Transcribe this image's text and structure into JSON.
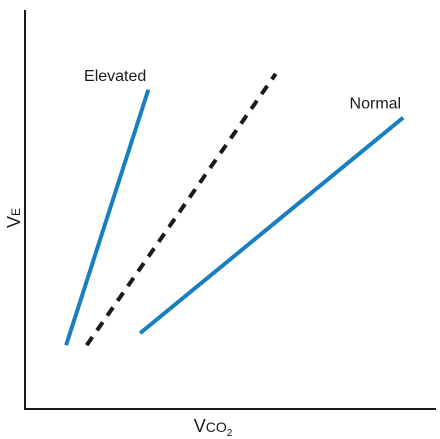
{
  "chart_data": {
    "type": "line",
    "title": "",
    "xlabel": {
      "main": "V",
      "sub": "CO",
      "subscript": "2"
    },
    "ylabel": {
      "main": "V",
      "sub": "E"
    },
    "xlim": [
      0,
      100
    ],
    "ylim": [
      0,
      100
    ],
    "grid": false,
    "legend": "none",
    "series": [
      {
        "name": "Elevated",
        "style": "solid",
        "color": "#1a7fc1",
        "x": [
          10,
          30
        ],
        "y": [
          16,
          80
        ]
      },
      {
        "name": "",
        "style": "dashed",
        "color": "#1a1a1a",
        "x": [
          15,
          61
        ],
        "y": [
          16,
          84
        ]
      },
      {
        "name": "Normal",
        "style": "solid",
        "color": "#1a7fc1",
        "x": [
          28,
          92
        ],
        "y": [
          19,
          73
        ]
      }
    ]
  },
  "colors": {
    "axis": "#1a1a1a",
    "line_primary": "#1a7fc1",
    "line_dashed": "#1a1a1a"
  }
}
